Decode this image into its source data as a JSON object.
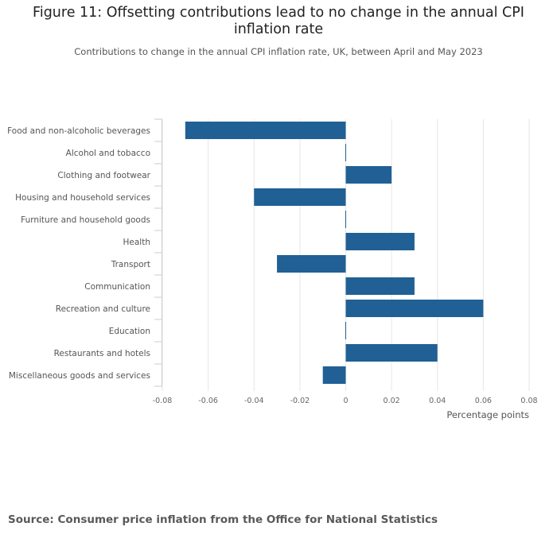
{
  "header": {
    "title": "Figure 11: Offsetting contributions lead to no change in the annual CPI inflation rate",
    "subtitle": "Contributions to change in the annual CPI inflation rate, UK, between April and May 2023"
  },
  "footer": {
    "source": "Source: Consumer price inflation from the Office for National Statistics"
  },
  "colors": {
    "bar": "#206095",
    "grid": "#e6e6e6",
    "axis": "#cccccc"
  },
  "chart_data": {
    "type": "bar",
    "orientation": "horizontal",
    "title": "Figure 11: Offsetting contributions lead to no change in the annual CPI inflation rate",
    "subtitle": "Contributions to change in the annual CPI inflation rate, UK, between April and May 2023",
    "categories": [
      "Food and non-alcoholic beverages",
      "Alcohol and tobacco",
      "Clothing and footwear",
      "Housing and household services",
      "Furniture and household goods",
      "Health",
      "Transport",
      "Communication",
      "Recreation and culture",
      "Education",
      "Restaurants and hotels",
      "Miscellaneous goods and services"
    ],
    "values": [
      -0.07,
      0.0,
      0.02,
      -0.04,
      0.0,
      0.03,
      -0.03,
      0.03,
      0.06,
      0.0,
      0.04,
      -0.01
    ],
    "xlabel": "Percentage points",
    "ylabel": "",
    "xlim": [
      -0.08,
      0.08
    ],
    "xticks": [
      -0.08,
      -0.06,
      -0.04,
      -0.02,
      0,
      0.02,
      0.04,
      0.06,
      0.08
    ],
    "xtick_labels": [
      "-0.08",
      "-0.06",
      "-0.04",
      "-0.02",
      "0",
      "0.02",
      "0.04",
      "0.06",
      "0.08"
    ],
    "grid": true,
    "legend": "none"
  }
}
